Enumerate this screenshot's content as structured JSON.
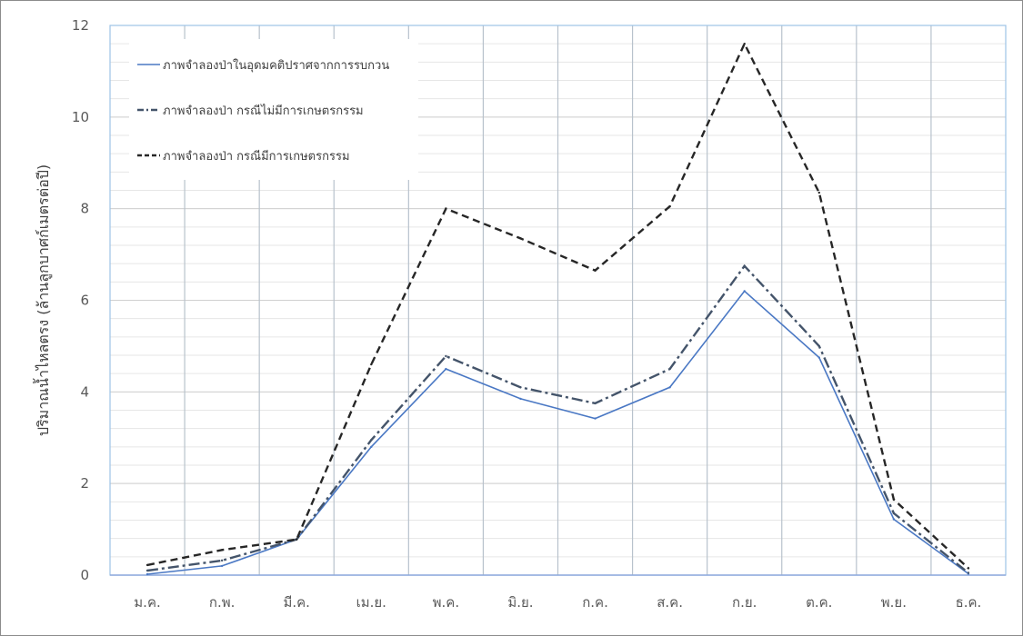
{
  "chart_data": {
    "type": "line",
    "title": "",
    "xlabel": "",
    "ylabel": "ปริมาณน้ำไหลตรง (ล้านลูกบาศก์เมตรต่อปี)",
    "categories": [
      "ม.ค.",
      "ก.พ.",
      "มี.ค.",
      "เม.ย.",
      "พ.ค.",
      "มิ.ย.",
      "ก.ค.",
      "ส.ค.",
      "ก.ย.",
      "ต.ค.",
      "พ.ย.",
      "ธ.ค."
    ],
    "ylim": [
      0,
      12
    ],
    "yticks": [
      0,
      2,
      4,
      6,
      8,
      10,
      12
    ],
    "grid": true,
    "legend_position": "top-left",
    "series": [
      {
        "name": "ภาพจำลองป่าในอุดมคติปราศจากการรบกวน",
        "values": [
          0.02,
          0.2,
          0.78,
          2.8,
          4.5,
          3.85,
          3.42,
          4.1,
          6.2,
          4.75,
          1.22,
          0.03
        ],
        "color": "#4a78c4",
        "style": "solid"
      },
      {
        "name": "ภาพจำลองป่า กรณีไม่มีการเกษตรกรรม",
        "values": [
          0.1,
          0.32,
          0.78,
          2.95,
          4.78,
          4.1,
          3.75,
          4.5,
          6.75,
          5.0,
          1.35,
          0.05
        ],
        "color": "#44546a",
        "style": "dashdot"
      },
      {
        "name": "ภาพจำลองป่า กรณีมีการเกษตรกรรม",
        "values": [
          0.22,
          0.55,
          0.78,
          4.6,
          8.0,
          7.35,
          6.65,
          8.05,
          11.6,
          8.35,
          1.65,
          0.15
        ],
        "color": "#262626",
        "style": "dashed"
      }
    ]
  }
}
